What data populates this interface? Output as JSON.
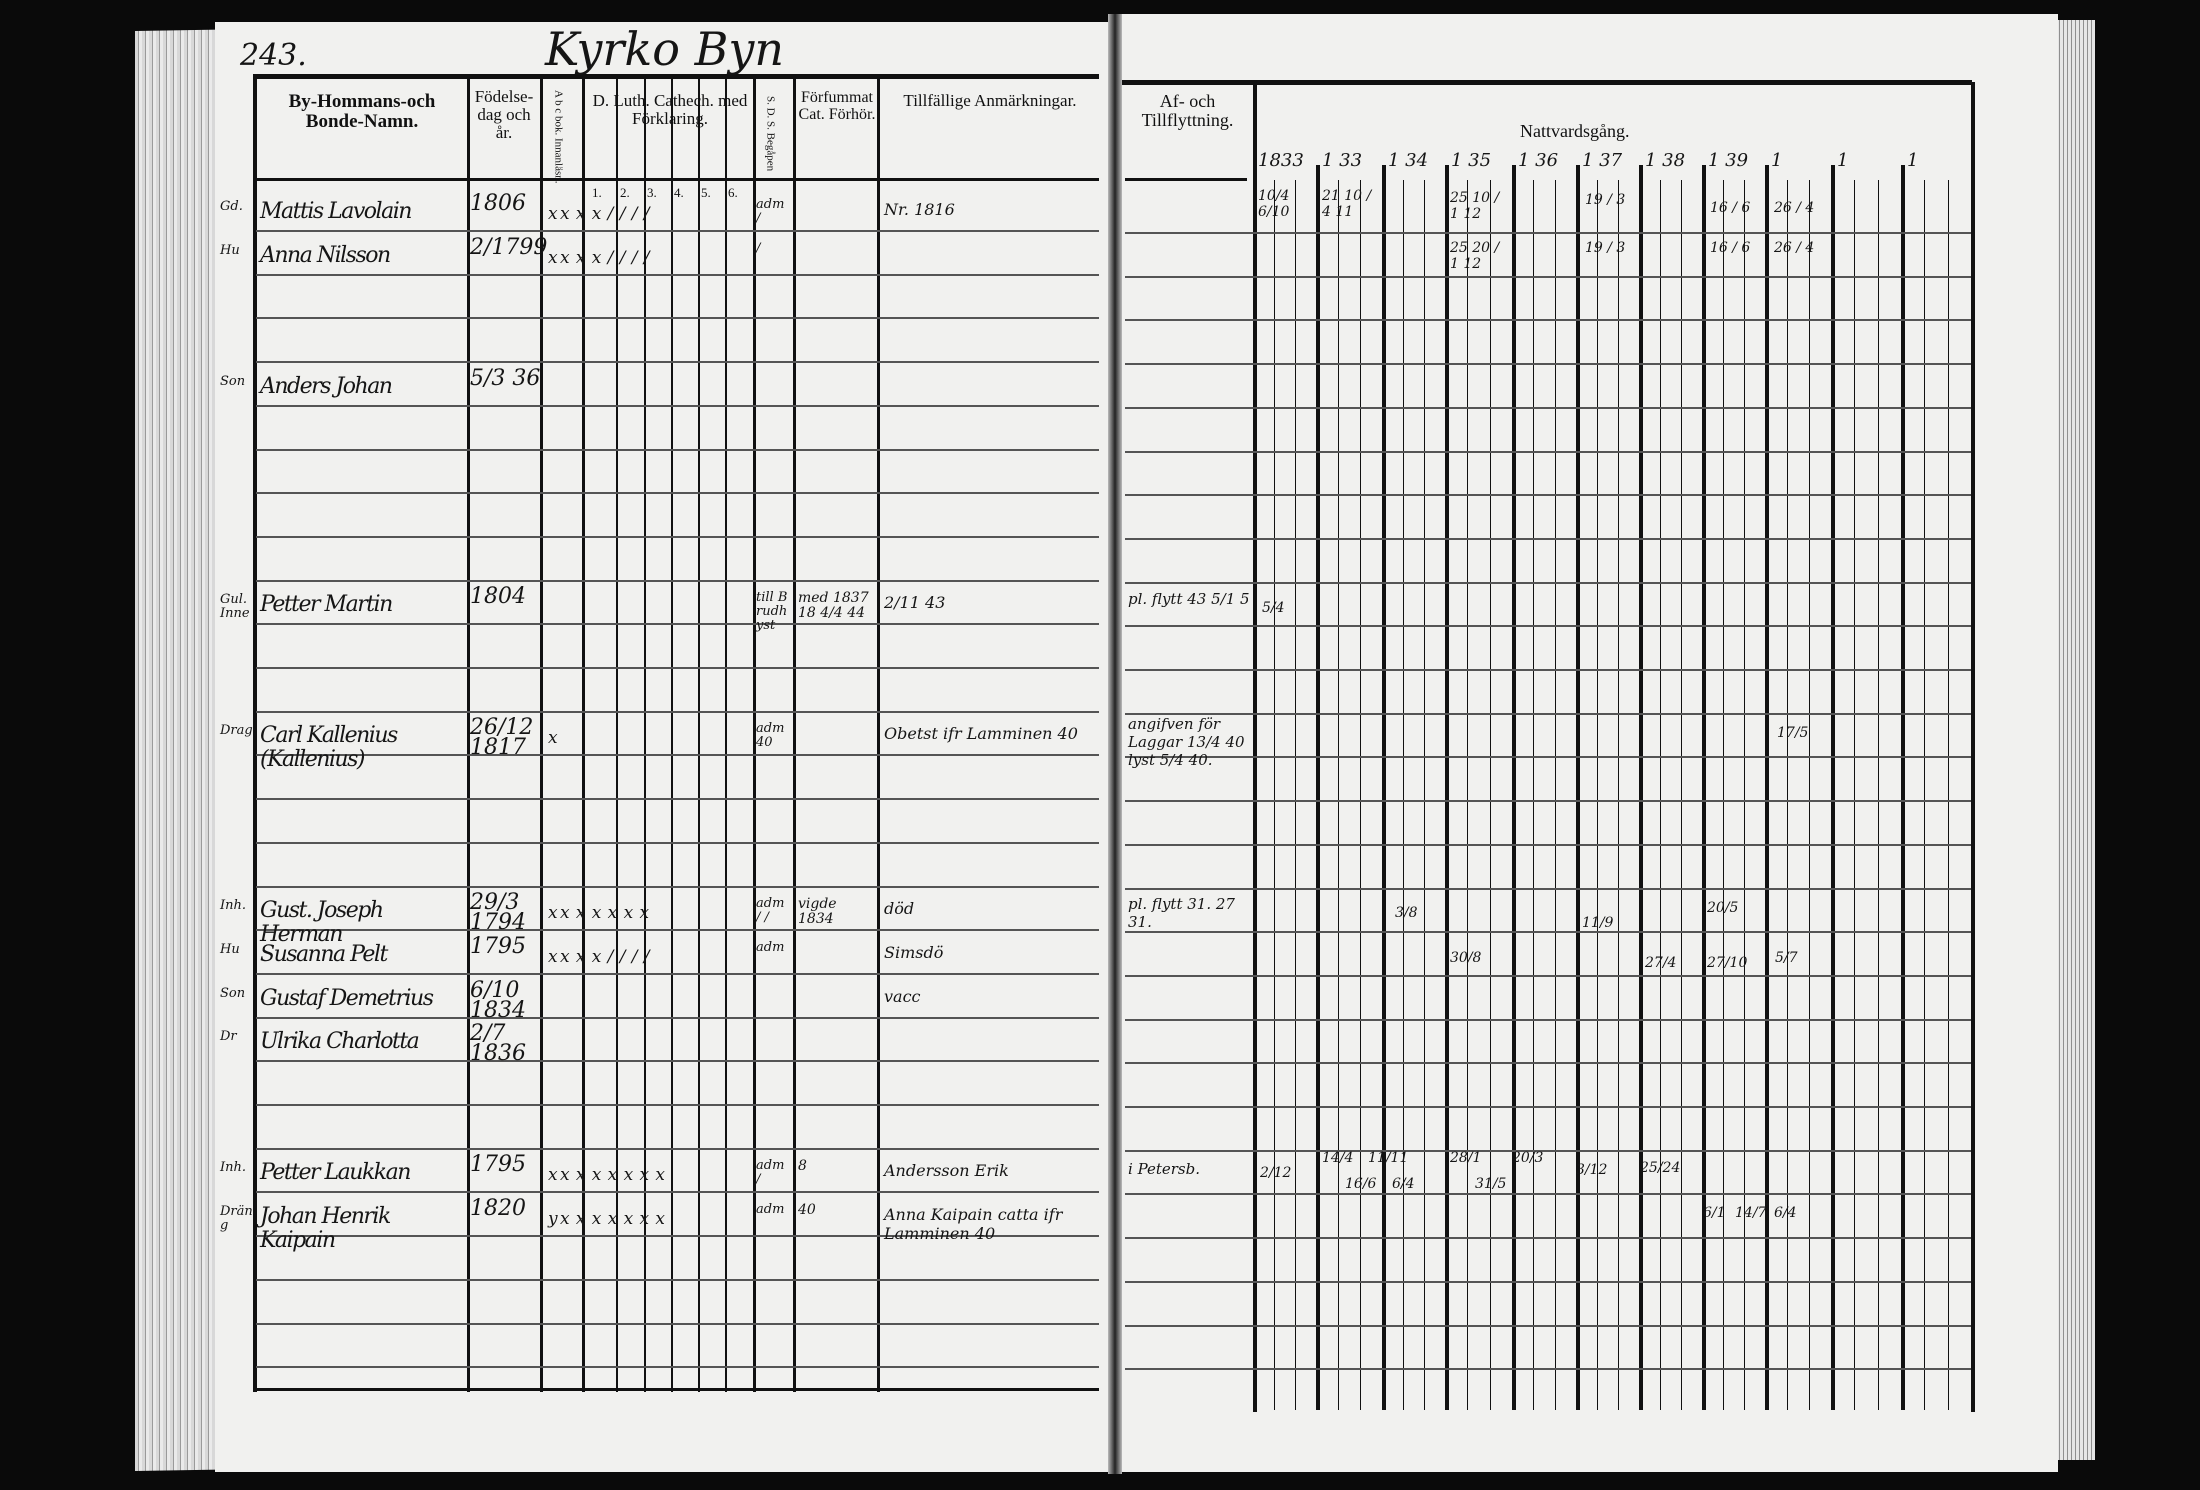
{
  "page_number": "243.",
  "village_heading": "Kyrko Byn",
  "left_headers": {
    "name": "By-Hommans-och Bonde-Namn.",
    "birth": "Födelse-dag och år.",
    "abc": "A b c bok. Innanläsn.",
    "catechism": "D. Luth. Cathech. med Förklaring.",
    "catechism_sub": [
      "1.",
      "2.",
      "3.",
      "4.",
      "5.",
      "6."
    ],
    "sds": "S. D. S. Begåpen",
    "forfummat": "Förfummat Cat. Förhör.",
    "remarks": "Tillfällige Anmärkningar."
  },
  "right_headers": {
    "moving": "Af- och Tillflyttning.",
    "communion": "Nattvardsgång.",
    "years": [
      "1833",
      "1 33",
      "1 34",
      "1 35",
      "1 36",
      "1 37",
      "1 38",
      "1 39",
      "1",
      "1",
      "1"
    ]
  },
  "entries": [
    {
      "prefix": "Gd.",
      "name": "Mattis Lavolain",
      "birth": "1806",
      "marks": "x x  x  x  /  /  /  /",
      "sds": "adm /",
      "remarks": "Nr. 1816"
    },
    {
      "prefix": "Hu",
      "name": "Anna Nilsson",
      "birth": "2/1799",
      "marks": "x x  x  x  /  /  /  /",
      "sds": "/"
    },
    {
      "prefix": "Son",
      "name": "Anders Johan",
      "birth": "5/3 36"
    },
    {
      "prefix": "Gul. Inne",
      "name": "Petter Martin",
      "birth": "1804",
      "sds": "till Brudhyst",
      "forfummat": "med 1837 18 4/4 44",
      "remarks": "2/11 43"
    },
    {
      "prefix": "Drag",
      "name": "Carl Kallenius (Kallenius)",
      "birth": "26/12 1817",
      "marks": "x",
      "sds": "adm 40",
      "remarks": "Obetst ifr Lamminen 40"
    },
    {
      "prefix": "Inh.",
      "name": "Gust. Joseph Herman",
      "birth": "29/3 1794",
      "marks": "x x  x  x  x  x  x",
      "sds": "adm / /",
      "forfummat": "vigde 1834",
      "remarks": "död"
    },
    {
      "prefix": "Hu",
      "name": "Susanna Pelt",
      "birth": "1795",
      "marks": "x x  x  x  /  /  /  /",
      "sds": "adm",
      "remarks": "Simsdö"
    },
    {
      "prefix": "Son",
      "name": "Gustaf Demetrius",
      "birth": "6/10 1834",
      "remarks": "vacc"
    },
    {
      "prefix": "Dr",
      "name": "Ulrika Charlotta",
      "birth": "2/7 1836"
    },
    {
      "prefix": "Inh.",
      "name": "Petter Laukkan",
      "birth": "1795",
      "marks": "x x  x  x  x  x  x  x",
      "sds": "adm /",
      "forfummat": "8",
      "remarks": "Andersson Erik"
    },
    {
      "prefix": "Dräng",
      "name": "Johan Henrik Kaipain",
      "birth": "1820",
      "marks": "y x  x  x  x  x  x  x",
      "sds": "adm",
      "forfummat": "40",
      "remarks": "Anna Kaipain catta ifr Lamminen 40"
    }
  ],
  "right_entries": {
    "moving_notes": [
      {
        "row": "Petter Martin",
        "text": "pl. flytt 43 5/1 5"
      },
      {
        "row": "Carl Kallenius",
        "text": "angifven för Laggar 13/4 40 lyst 5/4 40."
      },
      {
        "row": "Gust. Joseph Herman",
        "text": "pl. flytt 31. 27 31."
      },
      {
        "row": "Petter Laukkan",
        "text": "i Petersb."
      }
    ],
    "communion_marks": [
      {
        "text": "10/4 6/10"
      },
      {
        "text": "21 10 / 4 11"
      },
      {
        "text": "25 10 / 1 12"
      },
      {
        "text": "19 / 3"
      },
      {
        "text": "16 / 6"
      },
      {
        "text": "26 / 4"
      },
      {
        "text": "25 20 / 1 12"
      },
      {
        "text": "19 / 3"
      },
      {
        "text": "16 / 6"
      },
      {
        "text": "26 / 4"
      },
      {
        "text": "5/4"
      },
      {
        "text": "17/5"
      },
      {
        "text": "3/8"
      },
      {
        "text": "11/9"
      },
      {
        "text": "20/5"
      },
      {
        "text": "30/8"
      },
      {
        "text": "27/4"
      },
      {
        "text": "27/10"
      },
      {
        "text": "5/7"
      },
      {
        "text": "2/12"
      },
      {
        "text": "14/4"
      },
      {
        "text": "16/6"
      },
      {
        "text": "11/11"
      },
      {
        "text": "6/4"
      },
      {
        "text": "28/1"
      },
      {
        "text": "31/5"
      },
      {
        "text": "20/3"
      },
      {
        "text": "3/12"
      },
      {
        "text": "25/24"
      },
      {
        "text": "6/1"
      },
      {
        "text": "14/7"
      },
      {
        "text": "6/4"
      }
    ]
  }
}
